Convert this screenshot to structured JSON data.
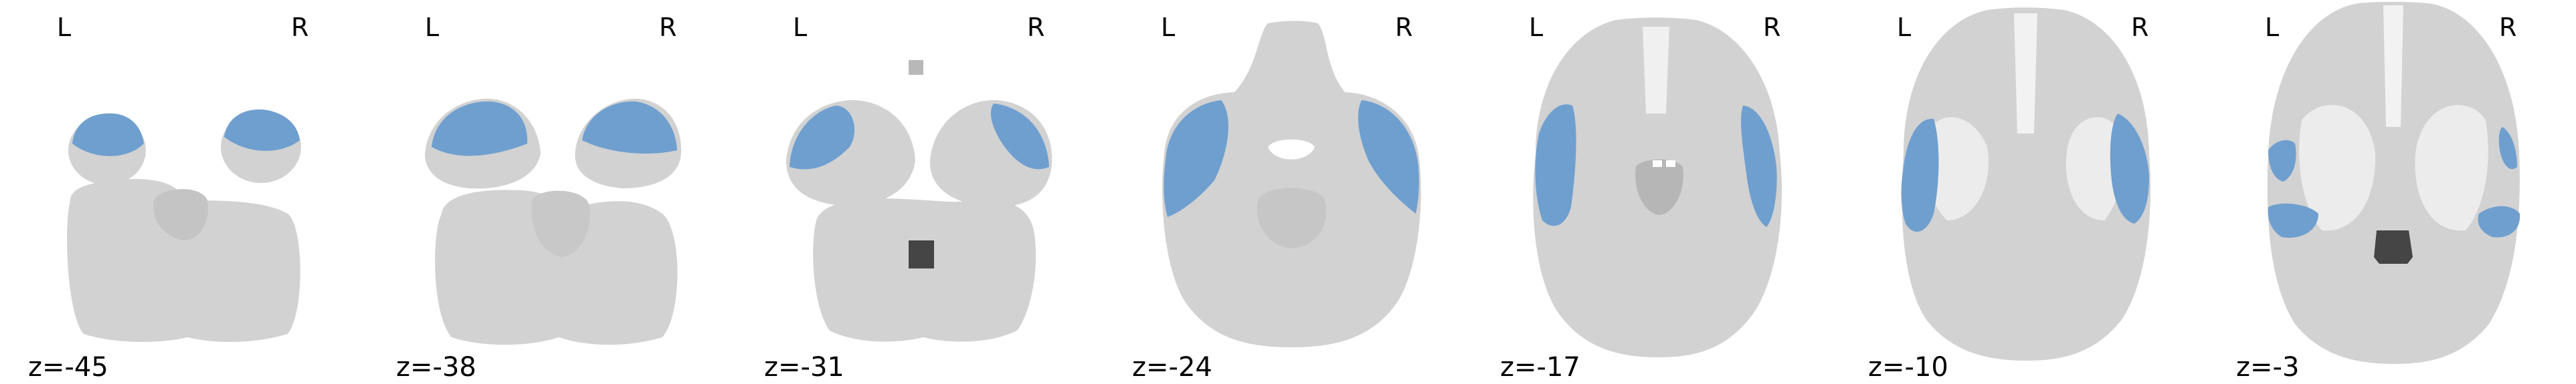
{
  "figure": {
    "panels": [
      {
        "left_label": "L",
        "right_label": "R",
        "z_label": "z=-45"
      },
      {
        "left_label": "L",
        "right_label": "R",
        "z_label": "z=-38"
      },
      {
        "left_label": "L",
        "right_label": "R",
        "z_label": "z=-31"
      },
      {
        "left_label": "L",
        "right_label": "R",
        "z_label": "z=-24"
      },
      {
        "left_label": "L",
        "right_label": "R",
        "z_label": "z=-17"
      },
      {
        "left_label": "L",
        "right_label": "R",
        "z_label": "z=-10"
      },
      {
        "left_label": "L",
        "right_label": "R",
        "z_label": "z=-3"
      }
    ],
    "colors": {
      "background": "#ffffff",
      "brain_tissue": "#d2d2d2",
      "white_matter": "#ececec",
      "ventricle": "#454545",
      "overlay": "#6f9fcf"
    }
  }
}
